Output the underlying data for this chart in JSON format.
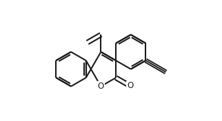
{
  "bg_color": "#ffffff",
  "line_color": "#1a1a1a",
  "line_width": 1.5,
  "figsize": [
    3.22,
    1.76
  ],
  "dpi": 100
}
